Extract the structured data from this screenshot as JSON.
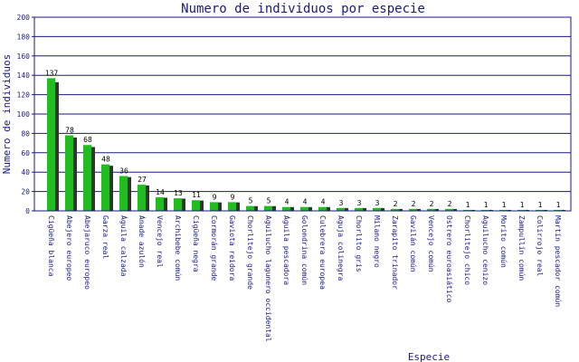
{
  "chart_data": {
    "type": "bar",
    "title": "Numero de individuos por especie",
    "xlabel": "Especie",
    "ylabel": "Numero de individuos",
    "ylim": [
      0,
      200
    ],
    "yticks": [
      "0",
      "20",
      "40",
      "60",
      "80",
      "100",
      "120",
      "140",
      "160",
      "180",
      "200"
    ],
    "grid": true,
    "bar_color": "#22bb22",
    "shadow_color": "#333333",
    "grid_color": "#1a1a80",
    "categories": [
      "Cigüeña blanca",
      "Abejero europeo",
      "Abejaruco europeo",
      "Garza real",
      "Águila calzada",
      "Ánade azulón",
      "Vencejo real",
      "Archibebe común",
      "Cigüeña negra",
      "Cormorán grande",
      "Gaviota reidora",
      "Chorlitejo grande",
      "Aguilucho lagunero occidental",
      "Águila pescadora",
      "Golondrina común",
      "Culebrera europea",
      "Aguja colinegra",
      "Chorlito gris",
      "Milano negro",
      "Zarapito trinador",
      "Gavilán común",
      "Vencejo común",
      "Ostrero euroasiático",
      "Chorlitejo chico",
      "Aguilucho cenizo",
      "Morito común",
      "Zampullín común",
      "Colirrojo real",
      "Martín pescador común"
    ],
    "values": [
      137,
      78,
      68,
      48,
      36,
      27,
      14,
      13,
      11,
      9,
      9,
      5,
      5,
      4,
      4,
      4,
      3,
      3,
      3,
      2,
      2,
      2,
      2,
      1,
      1,
      1,
      1,
      1,
      1
    ],
    "value_labels": [
      "137",
      "78",
      "68",
      "48",
      "36",
      "27",
      "14",
      "13",
      "11",
      "9",
      "9",
      "5",
      "5",
      "4",
      "4",
      "4",
      "3",
      "3",
      "3",
      "2",
      "2",
      "2",
      "2",
      "1",
      "1",
      "1",
      "1",
      "1",
      "1"
    ]
  }
}
